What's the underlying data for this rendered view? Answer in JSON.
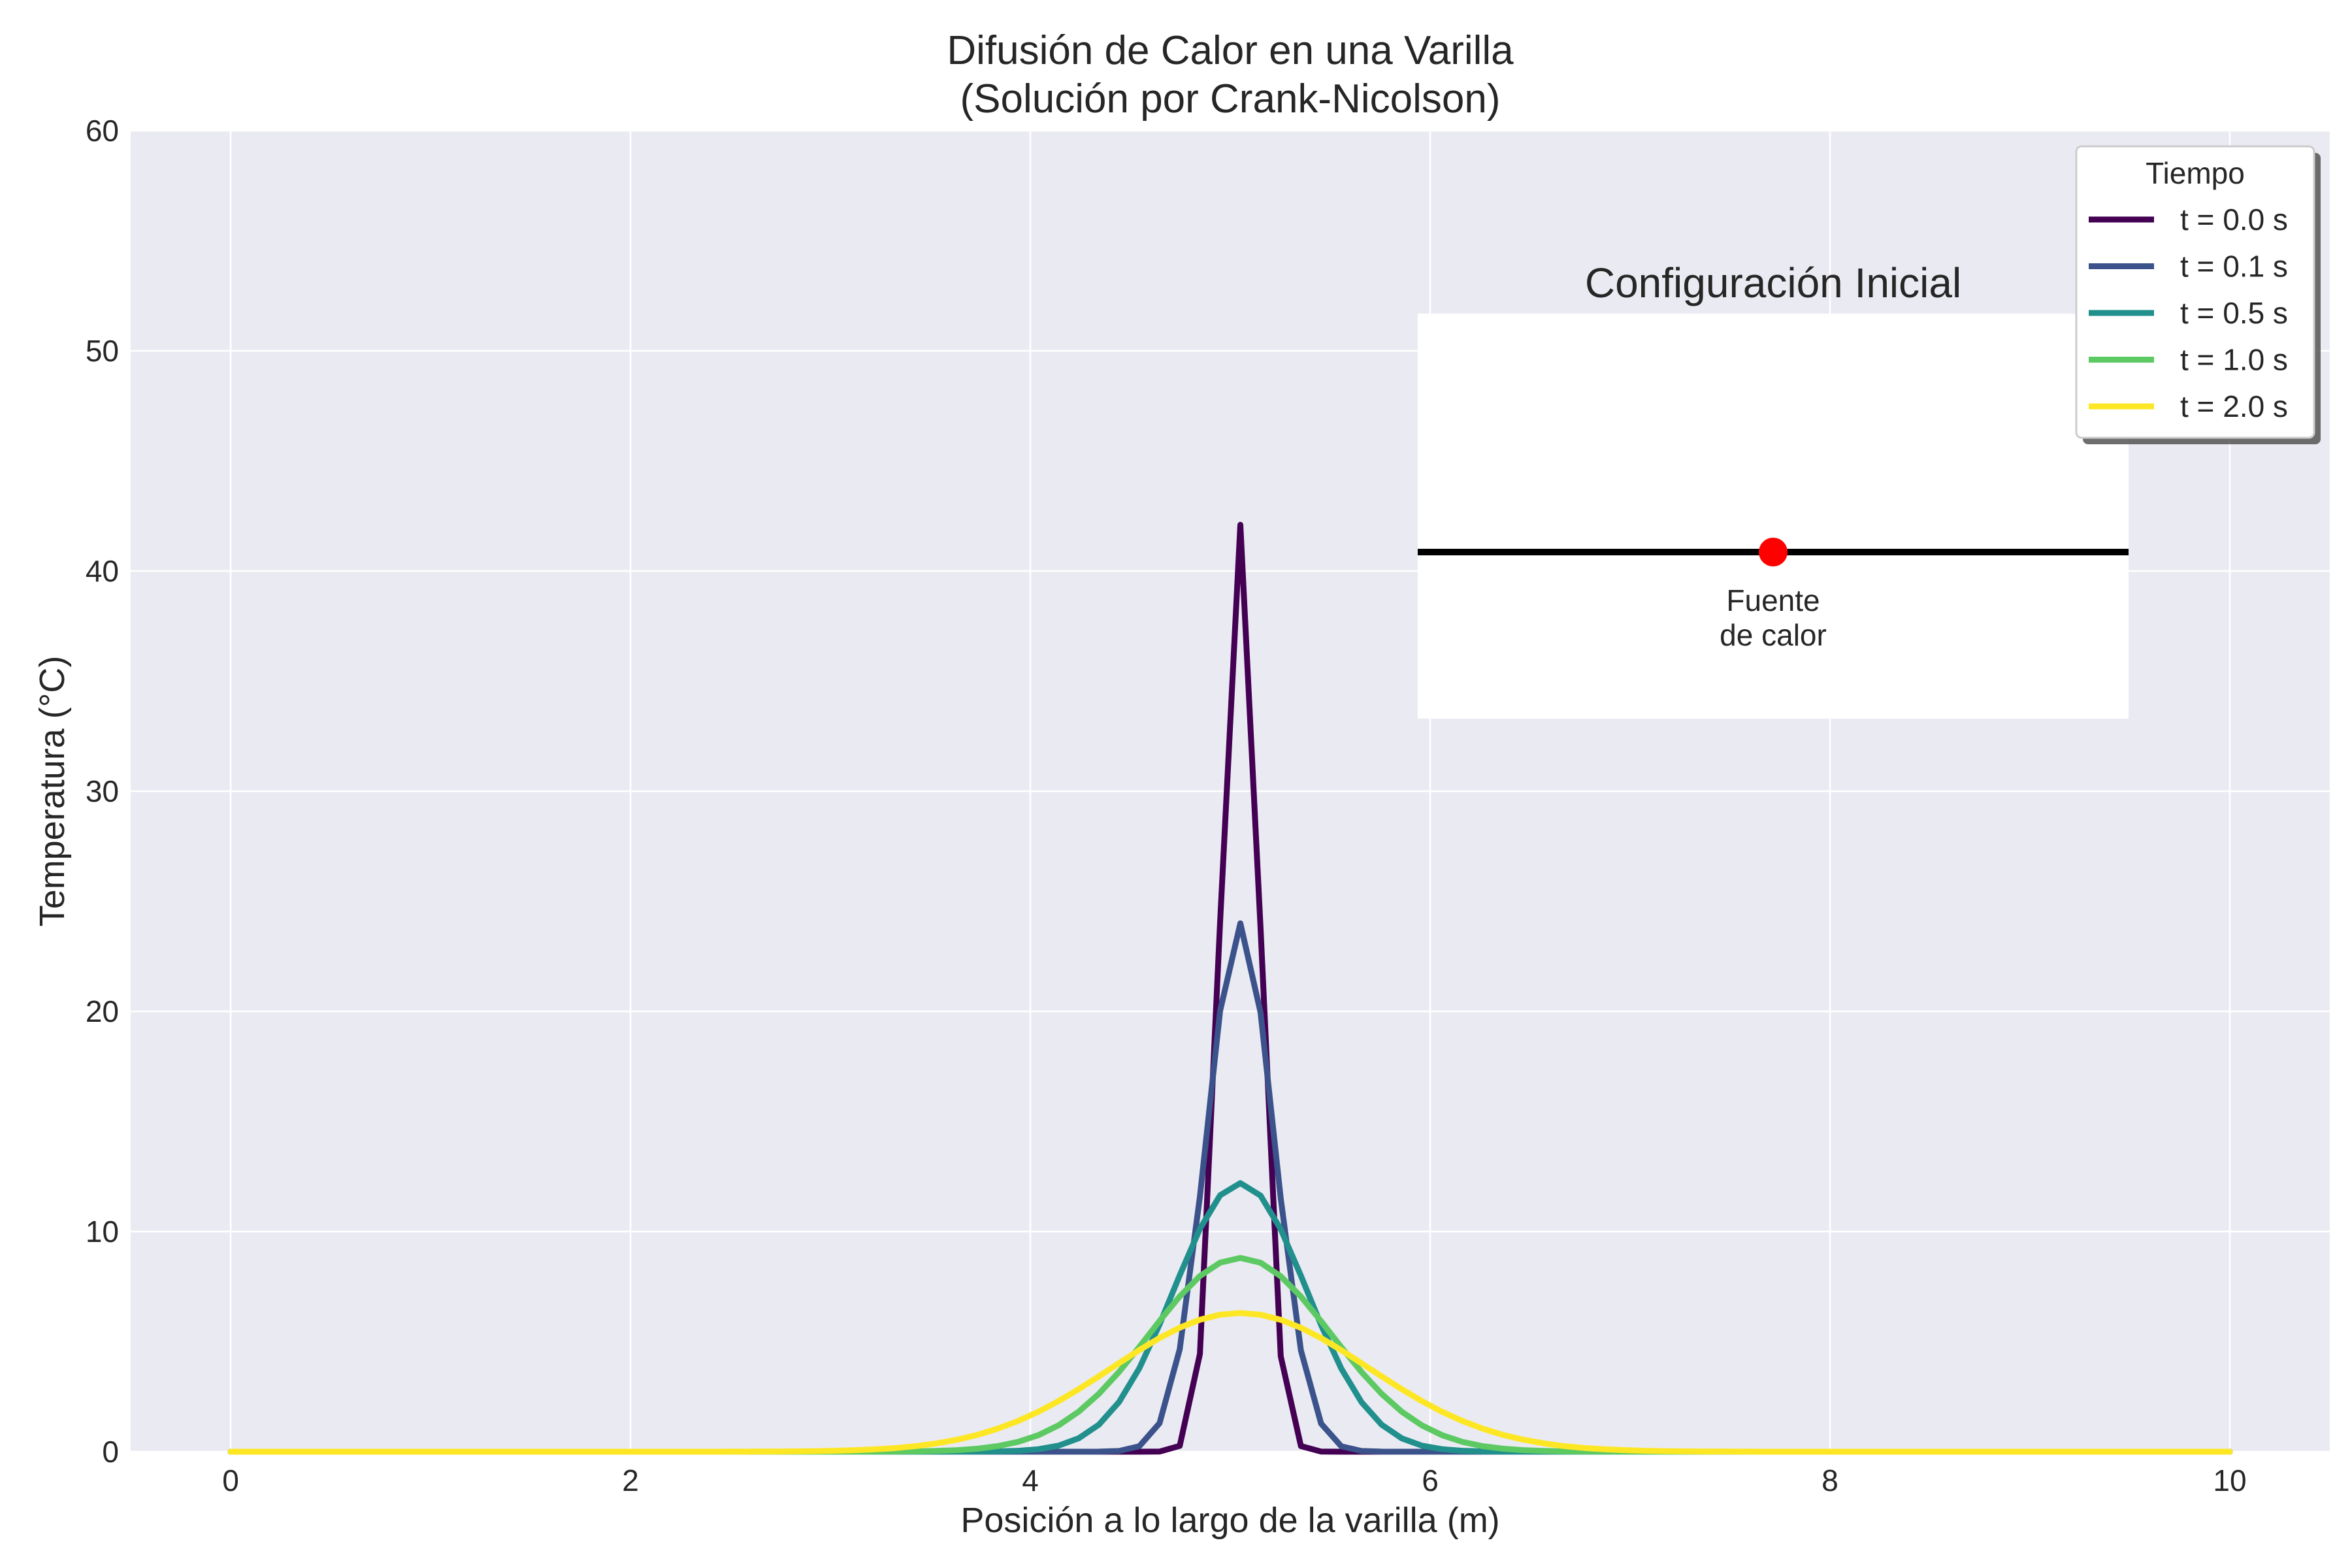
{
  "chart_data": {
    "type": "line",
    "title": "Difusión de Calor en una Varilla",
    "subtitle": "(Solución por Crank-Nicolson)",
    "xlabel": "Posición a lo largo de la varilla (m)",
    "ylabel": "Temperatura (°C)",
    "xlim": [
      -0.5,
      10.5
    ],
    "ylim": [
      0,
      60
    ],
    "xticks": [
      0,
      2,
      4,
      6,
      8,
      10
    ],
    "yticks": [
      0,
      10,
      20,
      30,
      40,
      50,
      60
    ],
    "grid": true,
    "legend": {
      "title": "Tiempo",
      "placement": "top-right"
    },
    "series": [
      {
        "name": "t = 0.0 s",
        "color": "#440154",
        "peak": 42.1,
        "sigma": 0.095
      },
      {
        "name": "t = 0.1 s",
        "color": "#3b528b",
        "peak": 24.0,
        "sigma": 0.167
      },
      {
        "name": "t = 0.5 s",
        "color": "#21908d",
        "peak": 12.2,
        "sigma": 0.33
      },
      {
        "name": "t = 1.0 s",
        "color": "#5dc963",
        "peak": 8.8,
        "sigma": 0.455
      },
      {
        "name": "t = 2.0 s",
        "color": "#fde725",
        "peak": 6.3,
        "sigma": 0.64
      }
    ],
    "series_center_x": 5.05,
    "x_range": [
      0,
      10
    ],
    "num_points": 100,
    "inset": {
      "title": "Configuración Inicial",
      "rod_color": "#000000",
      "source_color": "#ff0000",
      "source_label_line1": "Fuente",
      "source_label_line2": "de calor"
    }
  }
}
